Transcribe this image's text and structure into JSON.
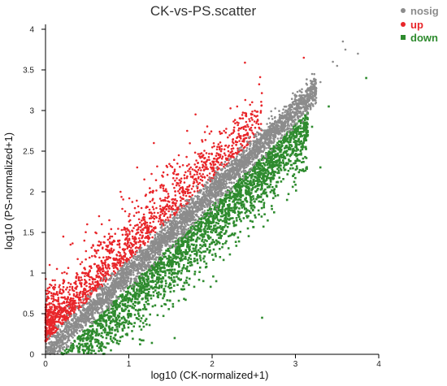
{
  "chart_data": {
    "type": "scatter",
    "title": "CK-vs-PS.scatter",
    "xlabel": "log10 (CK-normalized+1)",
    "ylabel": "log10 (PS-normalized+1)",
    "xlim": [
      0,
      4
    ],
    "ylim": [
      0,
      4
    ],
    "x_ticks": [
      0,
      1,
      2,
      3,
      4
    ],
    "y_ticks": [
      0,
      0.5,
      1,
      1.5,
      2,
      2.5,
      3,
      3.5,
      4
    ],
    "x_tick_labels": [
      "0",
      "1",
      "2",
      "3",
      "4"
    ],
    "y_tick_labels": [
      "0",
      "0.5",
      "1",
      "1.5",
      "2",
      "2.5",
      "3",
      "3.5",
      "4"
    ],
    "grid": false,
    "legend_position": "top-right",
    "series": [
      {
        "name": "nosig",
        "color": "#8c8c8c",
        "marker": "circle",
        "values": [
          [
            0.05,
            0.08
          ],
          [
            0.2,
            0.25
          ],
          [
            0.4,
            0.42
          ],
          [
            0.6,
            0.65
          ],
          [
            0.8,
            0.85
          ],
          [
            1.0,
            1.05
          ],
          [
            1.2,
            1.22
          ],
          [
            1.4,
            1.45
          ],
          [
            1.6,
            1.62
          ],
          [
            1.8,
            1.85
          ],
          [
            2.0,
            2.05
          ],
          [
            2.2,
            2.22
          ],
          [
            2.4,
            2.45
          ],
          [
            2.5,
            2.55
          ],
          [
            2.7,
            2.75
          ],
          [
            2.9,
            2.95
          ],
          [
            3.1,
            3.15
          ],
          [
            3.3,
            3.35
          ],
          [
            3.5,
            3.55
          ],
          [
            3.57,
            3.85
          ],
          [
            3.6,
            3.75
          ],
          [
            3.75,
            3.7
          ],
          [
            3.2,
            3.45
          ],
          [
            3.45,
            3.6
          ]
        ]
      },
      {
        "name": "up",
        "color": "#e8262a",
        "marker": "circle",
        "values": [
          [
            0.1,
            0.5
          ],
          [
            0.2,
            0.7
          ],
          [
            0.4,
            0.95
          ],
          [
            0.6,
            1.2
          ],
          [
            0.8,
            1.45
          ],
          [
            1.0,
            1.7
          ],
          [
            1.2,
            1.95
          ],
          [
            1.4,
            2.2
          ],
          [
            1.6,
            2.45
          ],
          [
            1.7,
            2.75
          ],
          [
            2.3,
            3.05
          ],
          [
            3.1,
            3.65
          ],
          [
            0.05,
            1.1
          ],
          [
            0.3,
            1.35
          ],
          [
            0.5,
            1.6
          ],
          [
            0.9,
            2.0
          ],
          [
            1.1,
            2.3
          ],
          [
            0.2,
            1.0
          ],
          [
            0.6,
            1.5
          ],
          [
            1.3,
            2.6
          ]
        ]
      },
      {
        "name": "down",
        "color": "#2e8b2e",
        "marker": "square",
        "values": [
          [
            0.4,
            0.05
          ],
          [
            0.6,
            0.15
          ],
          [
            0.8,
            0.3
          ],
          [
            1.0,
            0.5
          ],
          [
            1.2,
            0.7
          ],
          [
            1.4,
            0.9
          ],
          [
            1.6,
            1.1
          ],
          [
            1.8,
            1.3
          ],
          [
            2.0,
            1.5
          ],
          [
            2.2,
            1.7
          ],
          [
            2.4,
            1.9
          ],
          [
            2.6,
            2.1
          ],
          [
            2.8,
            2.3
          ],
          [
            3.0,
            2.55
          ],
          [
            3.2,
            2.8
          ],
          [
            3.4,
            3.05
          ],
          [
            3.85,
            3.4
          ],
          [
            2.6,
            0.45
          ],
          [
            2.05,
            0.9
          ],
          [
            1.55,
            0.2
          ],
          [
            3.3,
            2.3
          ],
          [
            2.9,
            1.9
          ]
        ]
      }
    ]
  }
}
